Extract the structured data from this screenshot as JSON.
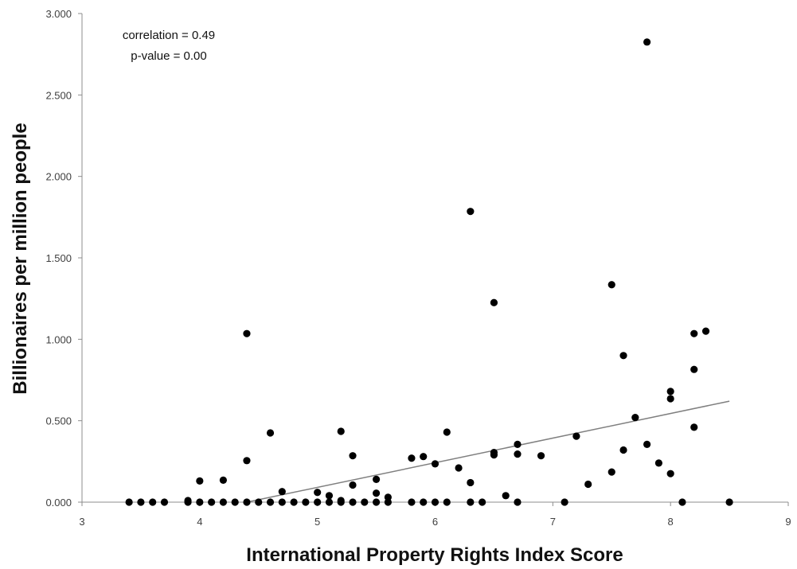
{
  "chart_data": {
    "type": "scatter",
    "xlabel": "International Property Rights Index Score",
    "ylabel": "Billionaires per million people",
    "xlim": [
      3,
      9
    ],
    "ylim": [
      0,
      3
    ],
    "x_ticks": [
      "3",
      "4",
      "5",
      "6",
      "7",
      "8",
      "9"
    ],
    "y_ticks": [
      "0.000",
      "0.500",
      "1.000",
      "1.500",
      "2.000",
      "2.500",
      "3.000"
    ],
    "grid": false,
    "annotations": [
      "correlation = 0.49",
      "p-value = 0.00"
    ],
    "trendline": {
      "x": [
        4.4,
        8.5
      ],
      "y": [
        0.0,
        0.62
      ]
    },
    "points": [
      {
        "x": 3.4,
        "y": 0.0
      },
      {
        "x": 3.5,
        "y": 0.0
      },
      {
        "x": 3.6,
        "y": 0.0
      },
      {
        "x": 3.7,
        "y": 0.0
      },
      {
        "x": 3.9,
        "y": 0.0
      },
      {
        "x": 3.9,
        "y": 0.01
      },
      {
        "x": 4.0,
        "y": 0.0
      },
      {
        "x": 4.0,
        "y": 0.13
      },
      {
        "x": 4.1,
        "y": 0.0
      },
      {
        "x": 4.2,
        "y": 0.0
      },
      {
        "x": 4.2,
        "y": 0.135
      },
      {
        "x": 4.3,
        "y": 0.0
      },
      {
        "x": 4.4,
        "y": 0.0
      },
      {
        "x": 4.4,
        "y": 0.255
      },
      {
        "x": 4.4,
        "y": 1.035
      },
      {
        "x": 4.5,
        "y": 0.0
      },
      {
        "x": 4.6,
        "y": 0.0
      },
      {
        "x": 4.6,
        "y": 0.425
      },
      {
        "x": 4.7,
        "y": 0.0
      },
      {
        "x": 4.7,
        "y": 0.065
      },
      {
        "x": 4.8,
        "y": 0.0
      },
      {
        "x": 4.9,
        "y": 0.0
      },
      {
        "x": 5.0,
        "y": 0.0
      },
      {
        "x": 5.0,
        "y": 0.06
      },
      {
        "x": 5.1,
        "y": 0.0
      },
      {
        "x": 5.1,
        "y": 0.04
      },
      {
        "x": 5.2,
        "y": 0.0
      },
      {
        "x": 5.2,
        "y": 0.01
      },
      {
        "x": 5.2,
        "y": 0.435
      },
      {
        "x": 5.3,
        "y": 0.0
      },
      {
        "x": 5.3,
        "y": 0.105
      },
      {
        "x": 5.3,
        "y": 0.285
      },
      {
        "x": 5.4,
        "y": 0.0
      },
      {
        "x": 5.5,
        "y": 0.0
      },
      {
        "x": 5.5,
        "y": 0.055
      },
      {
        "x": 5.5,
        "y": 0.14
      },
      {
        "x": 5.6,
        "y": 0.0
      },
      {
        "x": 5.6,
        "y": 0.03
      },
      {
        "x": 5.8,
        "y": 0.0
      },
      {
        "x": 5.8,
        "y": 0.27
      },
      {
        "x": 5.9,
        "y": 0.0
      },
      {
        "x": 5.9,
        "y": 0.28
      },
      {
        "x": 6.0,
        "y": 0.0
      },
      {
        "x": 6.0,
        "y": 0.235
      },
      {
        "x": 6.1,
        "y": 0.0
      },
      {
        "x": 6.1,
        "y": 0.43
      },
      {
        "x": 6.2,
        "y": 0.21
      },
      {
        "x": 6.3,
        "y": 0.0
      },
      {
        "x": 6.3,
        "y": 0.12
      },
      {
        "x": 6.3,
        "y": 1.785
      },
      {
        "x": 6.4,
        "y": 0.0
      },
      {
        "x": 6.5,
        "y": 0.29
      },
      {
        "x": 6.5,
        "y": 0.305
      },
      {
        "x": 6.5,
        "y": 1.225
      },
      {
        "x": 6.6,
        "y": 0.04
      },
      {
        "x": 6.7,
        "y": 0.0
      },
      {
        "x": 6.7,
        "y": 0.295
      },
      {
        "x": 6.7,
        "y": 0.355
      },
      {
        "x": 6.9,
        "y": 0.285
      },
      {
        "x": 7.1,
        "y": 0.0
      },
      {
        "x": 7.2,
        "y": 0.405
      },
      {
        "x": 7.3,
        "y": 0.11
      },
      {
        "x": 7.5,
        "y": 0.185
      },
      {
        "x": 7.5,
        "y": 1.335
      },
      {
        "x": 7.6,
        "y": 0.32
      },
      {
        "x": 7.6,
        "y": 0.9
      },
      {
        "x": 7.7,
        "y": 0.52
      },
      {
        "x": 7.8,
        "y": 0.355
      },
      {
        "x": 7.8,
        "y": 2.825
      },
      {
        "x": 7.9,
        "y": 0.24
      },
      {
        "x": 8.0,
        "y": 0.175
      },
      {
        "x": 8.0,
        "y": 0.635
      },
      {
        "x": 8.0,
        "y": 0.68
      },
      {
        "x": 8.1,
        "y": 0.0
      },
      {
        "x": 8.2,
        "y": 0.46
      },
      {
        "x": 8.2,
        "y": 0.815
      },
      {
        "x": 8.2,
        "y": 1.035
      },
      {
        "x": 8.3,
        "y": 1.05
      },
      {
        "x": 8.5,
        "y": 0.0
      }
    ]
  }
}
